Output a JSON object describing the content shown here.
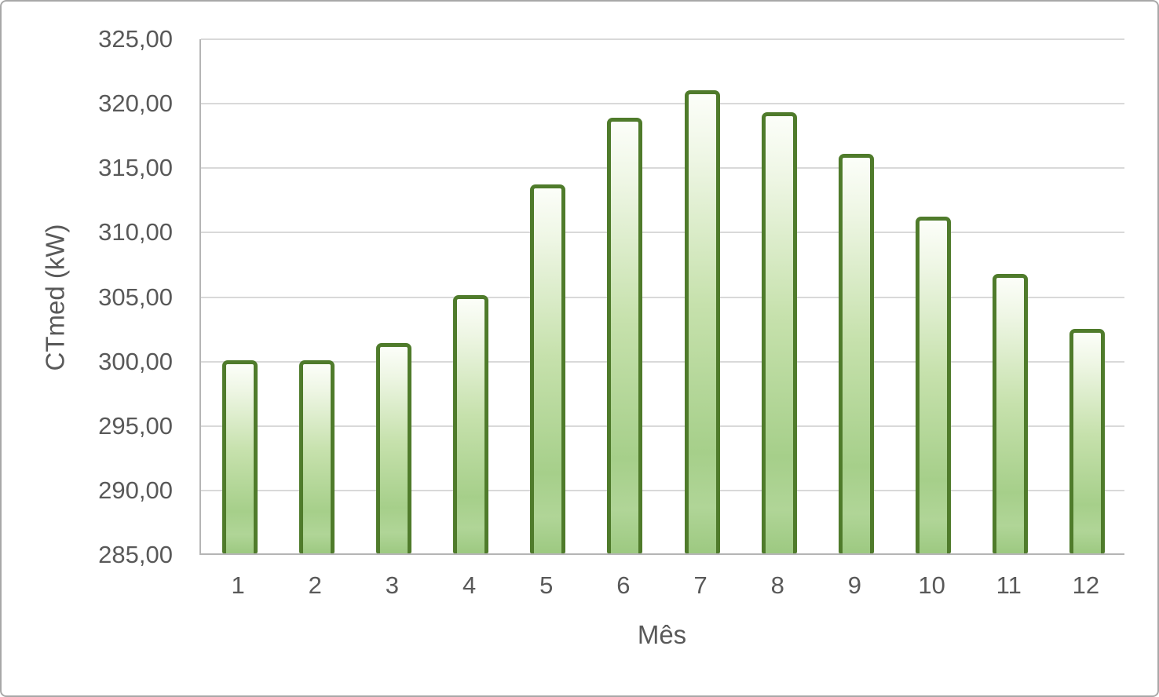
{
  "chart_data": {
    "type": "bar",
    "title": "",
    "xlabel": "Mês",
    "ylabel": "CTmed (kW)",
    "categories": [
      "1",
      "2",
      "3",
      "4",
      "5",
      "6",
      "7",
      "8",
      "9",
      "10",
      "11",
      "12"
    ],
    "values": [
      300.0,
      300.0,
      301.3,
      305.0,
      313.6,
      318.8,
      320.9,
      319.2,
      316.0,
      311.1,
      306.7,
      302.4
    ],
    "series_name": "CTmed",
    "ylim": [
      285,
      325
    ],
    "ytick_step": 5,
    "ytick_labels": [
      "285,00",
      "290,00",
      "295,00",
      "300,00",
      "305,00",
      "310,00",
      "315,00",
      "320,00",
      "325,00"
    ],
    "grid": true,
    "legend": "none",
    "number_format": "decimal-comma"
  },
  "colors": {
    "bar_border": "#4f7b2b",
    "bar_fill_top": "#fcfef9",
    "bar_fill_mid": "#c6e1ac",
    "bar_fill_bottom": "#9dc981",
    "gridline": "#d9d9d9",
    "axis_line": "#b5b5b5",
    "text": "#595959",
    "frame_border": "#a8a8a8",
    "background": "#ffffff"
  }
}
